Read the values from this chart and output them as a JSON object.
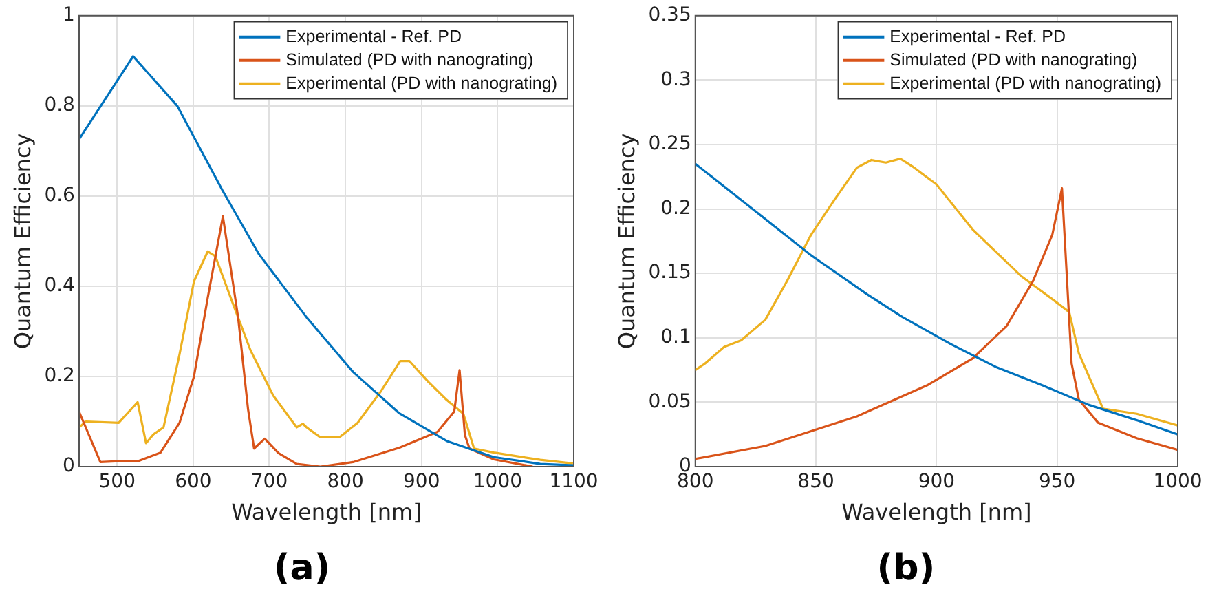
{
  "chart_data": [
    {
      "type": "line",
      "xlabel": "Wavelength [nm]",
      "ylabel": "Quantum Efficiency",
      "annotations": [
        "(a)"
      ],
      "xlim": [
        450,
        1100
      ],
      "xticks": [
        500,
        600,
        700,
        800,
        900,
        1000,
        1100
      ],
      "ylim": [
        0,
        1
      ],
      "yticks": [
        0,
        0.2,
        0.4,
        0.6,
        0.8,
        1
      ],
      "grid": true,
      "legend": "top right",
      "line_style": "solid",
      "marker": "none",
      "series": [
        {
          "name": "Experimental - Ref. PD",
          "color": "#0072bd",
          "x": [
            450,
            521,
            579,
            638,
            686,
            749,
            810,
            871,
            933,
            995,
            1056,
            1100
          ],
          "values": [
            0.726,
            0.91,
            0.8,
            0.614,
            0.472,
            0.331,
            0.21,
            0.118,
            0.057,
            0.021,
            0.006,
            0.003
          ]
        },
        {
          "name": "Simulated (PD with nanograting)",
          "color": "#d95319",
          "x": [
            450,
            478,
            502,
            527,
            557,
            582,
            601,
            619,
            639,
            659,
            672,
            680,
            694,
            712,
            736,
            767,
            810,
            871,
            921,
            943,
            950,
            957,
            963,
            995,
            1046
          ],
          "values": [
            0.122,
            0.01,
            0.012,
            0.012,
            0.031,
            0.097,
            0.2,
            0.374,
            0.555,
            0.331,
            0.128,
            0.04,
            0.062,
            0.03,
            0.006,
            0,
            0.01,
            0.042,
            0.077,
            0.122,
            0.214,
            0.07,
            0.04,
            0.016,
            0
          ]
        },
        {
          "name": "Experimental (PD with nanograting)",
          "color": "#edb120",
          "x": [
            450,
            459,
            502,
            527,
            538,
            548,
            561,
            582,
            601,
            619,
            629,
            650,
            675,
            705,
            736,
            744,
            749,
            767,
            792,
            816,
            847,
            872,
            884,
            909,
            933,
            955,
            969,
            995,
            1056,
            1099
          ],
          "values": [
            0.087,
            0.1,
            0.097,
            0.143,
            0.052,
            0.072,
            0.087,
            0.249,
            0.411,
            0.477,
            0.467,
            0.371,
            0.259,
            0.158,
            0.087,
            0.095,
            0.087,
            0.065,
            0.065,
            0.097,
            0.168,
            0.234,
            0.234,
            0.188,
            0.148,
            0.117,
            0.04,
            0.031,
            0.015,
            0.007
          ]
        }
      ]
    },
    {
      "type": "line",
      "xlabel": "Wavelength [nm]",
      "ylabel": "Quantum Efficiency",
      "annotations": [
        "(b)"
      ],
      "xlim": [
        800,
        1000
      ],
      "xticks": [
        800,
        850,
        900,
        950,
        1000
      ],
      "ylim": [
        0,
        0.35
      ],
      "yticks": [
        0,
        0.05,
        0.1,
        0.15,
        0.2,
        0.25,
        0.3,
        0.35
      ],
      "grid": true,
      "legend": "top right",
      "line_style": "solid",
      "marker": "none",
      "series": [
        {
          "name": "Experimental - Ref. PD",
          "color": "#0072bd",
          "x": [
            800,
            819,
            848,
            871,
            886,
            906,
            925,
            944,
            963,
            983,
            1000
          ],
          "values": [
            0.235,
            0.207,
            0.164,
            0.134,
            0.116,
            0.095,
            0.077,
            0.063,
            0.048,
            0.036,
            0.025
          ]
        },
        {
          "name": "Simulated (PD with nanograting)",
          "color": "#d95319",
          "x": [
            800,
            829,
            867,
            896,
            915,
            929,
            940,
            948,
            952,
            956,
            959,
            967,
            983,
            1000
          ],
          "values": [
            0.006,
            0.016,
            0.039,
            0.063,
            0.084,
            0.109,
            0.144,
            0.18,
            0.216,
            0.08,
            0.052,
            0.034,
            0.022,
            0.013
          ]
        },
        {
          "name": "Experimental (PD with nanograting)",
          "color": "#edb120",
          "x": [
            800,
            804,
            812,
            819,
            829,
            838,
            848,
            858,
            867,
            873,
            879,
            885,
            890,
            900,
            915,
            935,
            948,
            955,
            959,
            969,
            983,
            1000
          ],
          "values": [
            0.075,
            0.08,
            0.093,
            0.098,
            0.114,
            0.144,
            0.18,
            0.208,
            0.232,
            0.238,
            0.236,
            0.239,
            0.233,
            0.219,
            0.184,
            0.148,
            0.13,
            0.12,
            0.088,
            0.045,
            0.041,
            0.032
          ]
        }
      ]
    }
  ]
}
